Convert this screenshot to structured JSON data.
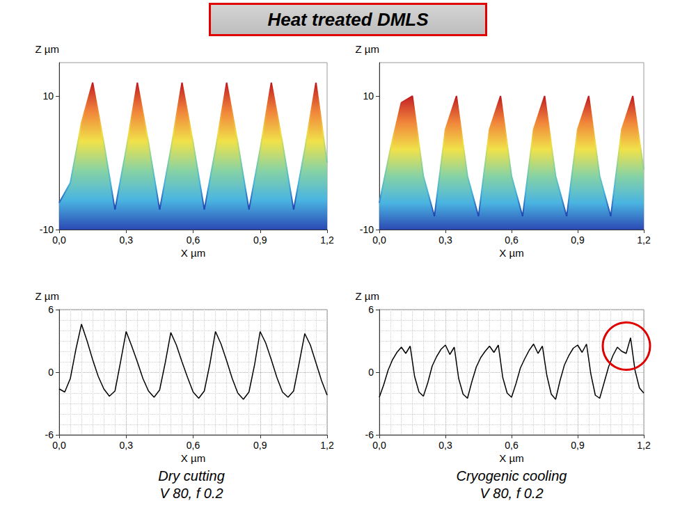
{
  "title": "Heat treated DMLS",
  "chart_data": [
    {
      "type": "surface",
      "xlabel": "X µm",
      "ylabel": "Z µm",
      "x": [
        0,
        0.05,
        0.1,
        0.15,
        0.2,
        0.25,
        0.3,
        0.35,
        0.4,
        0.45,
        0.5,
        0.55,
        0.6,
        0.65,
        0.7,
        0.75,
        0.8,
        0.85,
        0.9,
        0.95,
        1.0,
        1.05,
        1.1,
        1.15,
        1.2
      ],
      "values": [
        -6,
        -3,
        6,
        12,
        3,
        -7,
        2,
        12,
        3,
        -7,
        2,
        12,
        3,
        -7,
        2,
        12,
        3,
        -7,
        2,
        12,
        3,
        -7,
        2,
        12,
        0
      ],
      "xlim": [
        0,
        1.2
      ],
      "xticks": [
        {
          "value": 0,
          "label": "0,0"
        },
        {
          "value": 0.3,
          "label": "0,3"
        },
        {
          "value": 0.6,
          "label": "0,6"
        },
        {
          "value": 0.9,
          "label": "0,9"
        },
        {
          "value": 1.2,
          "label": "1,2"
        }
      ],
      "ylim": [
        -10,
        15
      ],
      "yticks": [
        -10,
        10
      ],
      "grid": false
    },
    {
      "type": "surface",
      "xlabel": "X µm",
      "ylabel": "Z µm",
      "x": [
        0,
        0.05,
        0.1,
        0.15,
        0.2,
        0.25,
        0.3,
        0.35,
        0.4,
        0.45,
        0.5,
        0.55,
        0.6,
        0.65,
        0.7,
        0.75,
        0.8,
        0.85,
        0.9,
        0.95,
        1.0,
        1.05,
        1.1,
        1.15,
        1.2
      ],
      "values": [
        -6,
        2,
        9,
        10,
        -2,
        -8,
        5,
        10,
        -2,
        -8,
        5,
        10,
        -2,
        -8,
        5,
        10,
        -2,
        -8,
        5,
        10,
        -2,
        -8,
        5,
        10,
        -1
      ],
      "xlim": [
        0,
        1.2
      ],
      "xticks": [
        {
          "value": 0,
          "label": "0,0"
        },
        {
          "value": 0.3,
          "label": "0,3"
        },
        {
          "value": 0.6,
          "label": "0,6"
        },
        {
          "value": 0.9,
          "label": "0,9"
        },
        {
          "value": 1.2,
          "label": "1,2"
        }
      ],
      "ylim": [
        -10,
        15
      ],
      "yticks": [
        -10,
        10
      ],
      "grid": false
    },
    {
      "type": "line",
      "xlabel": "X µm",
      "ylabel": "Z µm",
      "color": "#000000",
      "caption": [
        "Dry cutting",
        "V 80, f 0.2"
      ],
      "x": [
        0,
        0.025,
        0.05,
        0.075,
        0.1,
        0.125,
        0.15,
        0.175,
        0.2,
        0.225,
        0.25,
        0.275,
        0.3,
        0.325,
        0.35,
        0.375,
        0.4,
        0.425,
        0.45,
        0.475,
        0.5,
        0.525,
        0.55,
        0.575,
        0.6,
        0.625,
        0.65,
        0.675,
        0.7,
        0.725,
        0.75,
        0.775,
        0.8,
        0.825,
        0.85,
        0.875,
        0.9,
        0.925,
        0.95,
        0.975,
        1.0,
        1.025,
        1.05,
        1.075,
        1.1,
        1.125,
        1.15,
        1.175,
        1.2
      ],
      "values": [
        -1.6,
        -1.9,
        -0.6,
        2.2,
        4.6,
        3.0,
        1.2,
        -0.4,
        -1.6,
        -2.3,
        -1.8,
        1.0,
        3.9,
        2.5,
        1.0,
        -0.6,
        -1.8,
        -2.4,
        -1.7,
        0.9,
        3.8,
        2.6,
        1.0,
        -0.5,
        -1.9,
        -2.5,
        -1.8,
        0.8,
        3.9,
        2.7,
        1.1,
        -0.6,
        -2.0,
        -2.6,
        -1.9,
        0.7,
        3.9,
        2.8,
        1.2,
        -0.5,
        -1.9,
        -2.4,
        -1.8,
        0.9,
        3.7,
        2.6,
        0.9,
        -0.8,
        -2.2
      ],
      "xlim": [
        0,
        1.2
      ],
      "xticks": [
        {
          "value": 0,
          "label": "0,0"
        },
        {
          "value": 0.3,
          "label": "0,3"
        },
        {
          "value": 0.6,
          "label": "0,6"
        },
        {
          "value": 0.9,
          "label": "0,9"
        },
        {
          "value": 1.2,
          "label": "1,2"
        }
      ],
      "ylim": [
        -6,
        6
      ],
      "yticks": [
        -6,
        0,
        6
      ],
      "grid": true
    },
    {
      "type": "line",
      "xlabel": "X µm",
      "ylabel": "Z µm",
      "color": "#000000",
      "caption": [
        "Cryogenic cooling",
        "V 80, f 0.2"
      ],
      "x": [
        0,
        0.02,
        0.04,
        0.06,
        0.08,
        0.1,
        0.12,
        0.14,
        0.16,
        0.18,
        0.2,
        0.22,
        0.24,
        0.26,
        0.28,
        0.3,
        0.32,
        0.34,
        0.36,
        0.38,
        0.4,
        0.42,
        0.44,
        0.46,
        0.48,
        0.5,
        0.52,
        0.54,
        0.56,
        0.58,
        0.6,
        0.62,
        0.64,
        0.66,
        0.68,
        0.7,
        0.72,
        0.74,
        0.76,
        0.78,
        0.8,
        0.82,
        0.84,
        0.86,
        0.88,
        0.9,
        0.92,
        0.94,
        0.96,
        0.98,
        1.0,
        1.02,
        1.04,
        1.06,
        1.08,
        1.1,
        1.12,
        1.14,
        1.16,
        1.18,
        1.2
      ],
      "values": [
        -2.4,
        -1.2,
        0.2,
        1.2,
        1.9,
        2.4,
        1.8,
        2.5,
        -0.4,
        -1.9,
        -2.3,
        -1.0,
        0.6,
        1.5,
        2.2,
        2.6,
        1.7,
        2.4,
        -0.6,
        -2.1,
        -2.5,
        -0.9,
        0.5,
        1.4,
        2.0,
        2.5,
        1.9,
        2.6,
        -0.5,
        -2.0,
        -2.4,
        -1.1,
        0.4,
        1.3,
        2.1,
        2.7,
        1.8,
        2.5,
        -0.3,
        -2.1,
        -2.6,
        -0.8,
        0.7,
        1.6,
        2.3,
        2.6,
        1.9,
        2.7,
        -0.2,
        -2.2,
        -2.5,
        -1.0,
        0.5,
        1.6,
        2.4,
        2.0,
        1.8,
        3.3,
        0.2,
        -1.5,
        -2.0
      ],
      "xlim": [
        0,
        1.2
      ],
      "xticks": [
        {
          "value": 0,
          "label": "0,0"
        },
        {
          "value": 0.3,
          "label": "0,3"
        },
        {
          "value": 0.6,
          "label": "0,6"
        },
        {
          "value": 0.9,
          "label": "0,9"
        },
        {
          "value": 1.2,
          "label": "1,2"
        }
      ],
      "ylim": [
        -6,
        6
      ],
      "yticks": [
        -6,
        0,
        6
      ],
      "grid": true
    }
  ]
}
